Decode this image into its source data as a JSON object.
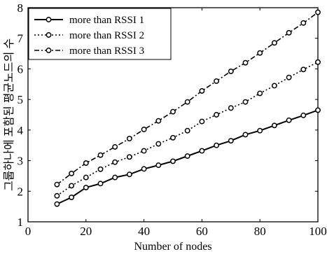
{
  "chart_data": {
    "type": "line",
    "xlabel": "Number of nodes",
    "ylabel": "그룹하나에 포함된 평균노드의 수",
    "xlim": [
      0,
      100
    ],
    "ylim": [
      1,
      8
    ],
    "xticks": [
      "0",
      "20",
      "40",
      "60",
      "80",
      "100"
    ],
    "yticks": [
      "1",
      "2",
      "3",
      "4",
      "5",
      "6",
      "7",
      "8"
    ],
    "grid": false,
    "legend_position": "top-left",
    "x": [
      10,
      15,
      20,
      25,
      30,
      35,
      40,
      45,
      50,
      55,
      60,
      65,
      70,
      75,
      80,
      85,
      90,
      95,
      100
    ],
    "series": [
      {
        "name": "more than RSSI 1",
        "line_style": "solid",
        "values": [
          1.58,
          1.8,
          2.12,
          2.25,
          2.45,
          2.55,
          2.73,
          2.85,
          2.98,
          3.15,
          3.32,
          3.5,
          3.65,
          3.85,
          3.98,
          4.15,
          4.32,
          4.48,
          4.65
        ]
      },
      {
        "name": "more than RSSI 2",
        "line_style": "dotted",
        "values": [
          1.85,
          2.18,
          2.45,
          2.72,
          2.95,
          3.12,
          3.32,
          3.55,
          3.75,
          3.98,
          4.28,
          4.5,
          4.72,
          4.92,
          5.2,
          5.45,
          5.72,
          5.98,
          6.22
        ]
      },
      {
        "name": "more than RSSI 3",
        "line_style": "dashdot",
        "values": [
          2.22,
          2.58,
          2.92,
          3.18,
          3.45,
          3.72,
          4.02,
          4.3,
          4.6,
          4.92,
          5.28,
          5.6,
          5.92,
          6.2,
          6.52,
          6.85,
          7.18,
          7.5,
          7.85
        ]
      }
    ]
  }
}
